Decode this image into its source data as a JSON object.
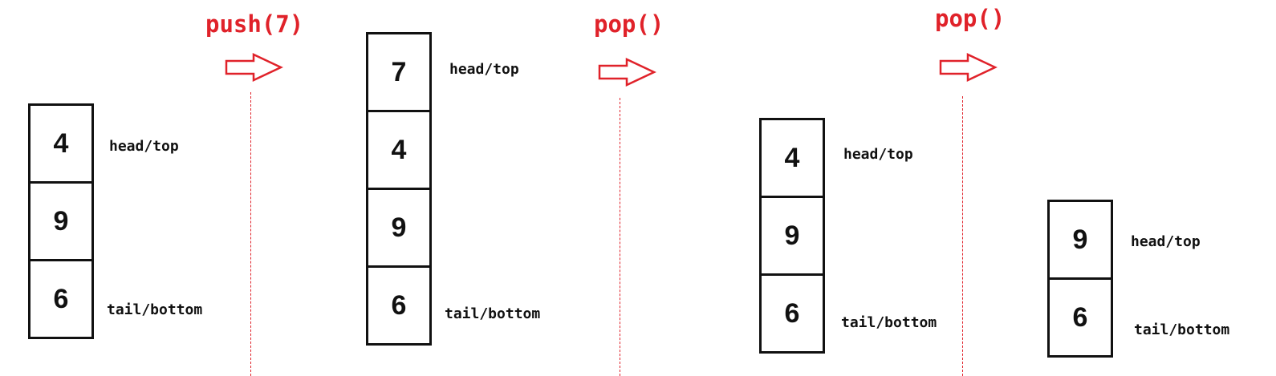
{
  "accent_color": "#e0222a",
  "operations": [
    {
      "label": "push(7)",
      "icon": "right-arrow-icon"
    },
    {
      "label": "pop()",
      "icon": "right-arrow-icon"
    },
    {
      "label": "pop()",
      "icon": "right-arrow-icon"
    }
  ],
  "stacks": [
    {
      "cells": [
        "4",
        "9",
        "6"
      ],
      "top_label": "head/top",
      "bottom_label": "tail/bottom"
    },
    {
      "cells": [
        "7",
        "4",
        "9",
        "6"
      ],
      "top_label": "head/top",
      "bottom_label": "tail/bottom"
    },
    {
      "cells": [
        "4",
        "9",
        "6"
      ],
      "top_label": "head/top",
      "bottom_label": "tail/bottom"
    },
    {
      "cells": [
        "9",
        "6"
      ],
      "top_label": "head/top",
      "bottom_label": "tail/bottom"
    }
  ]
}
